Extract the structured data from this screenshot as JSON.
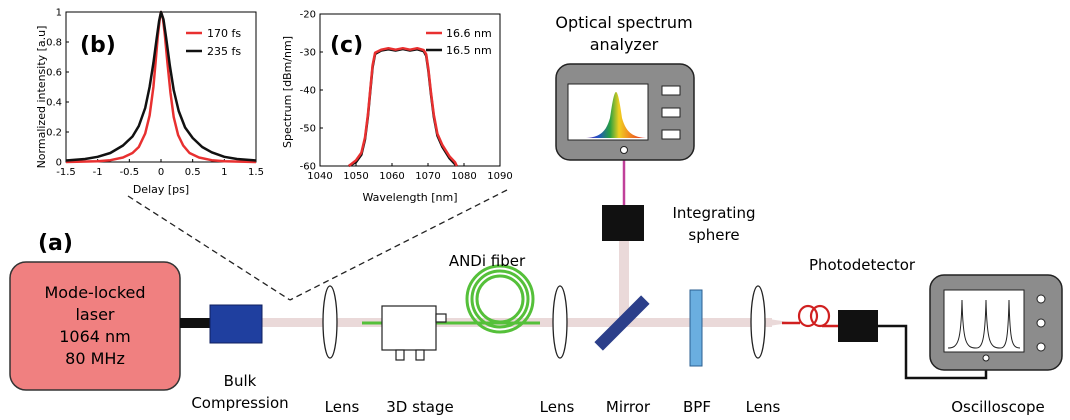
{
  "labels": {
    "panel_a": "(a)",
    "panel_b": "(b)",
    "panel_c": "(c)",
    "laser_line1": "Mode-locked",
    "laser_line2": "laser",
    "laser_line3": "1064 nm",
    "laser_line4": "80 MHz",
    "bulk_line1": "Bulk",
    "bulk_line2": "Compression",
    "lens1": "Lens",
    "stage3d": "3D stage",
    "andi_fiber": "ANDi fiber",
    "lens2": "Lens",
    "mirror": "Mirror",
    "bpf": "BPF",
    "lens3": "Lens",
    "osa_line1": "Optical spectrum",
    "osa_line2": "analyzer",
    "sphere_line1": "Integrating",
    "sphere_line2": "sphere",
    "photodetector": "Photodetector",
    "oscilloscope": "Oscilloscope"
  },
  "colors": {
    "laser_fill": "#f08080",
    "bulk_fill": "#1f3f9f",
    "fiber_green": "#55c03a",
    "beam": "#ead9d9",
    "bpf_fill": "#6aaee0",
    "mirror_fill": "#2c3f8a",
    "device_gray": "#8c8c8c",
    "trace_red": "#e83030",
    "trace_black": "#111111",
    "osa_link": "#c0409a"
  },
  "chart_data": [
    {
      "id": "b",
      "type": "line",
      "xlabel": "Delay [ps]",
      "ylabel": "Normalized intensity [a.u]",
      "xlim": [
        -1.5,
        1.5
      ],
      "ylim": [
        0,
        1
      ],
      "xticks": [
        "-1.5",
        "-1",
        "-0.5",
        "0",
        "0.5",
        "1",
        "1.5"
      ],
      "yticks": [
        "0",
        "0.2",
        "0.4",
        "0.6",
        "0.8",
        "1"
      ],
      "legend_position": "top-right",
      "series": [
        {
          "name": "170 fs",
          "color": "#e83030",
          "x": [
            -1.5,
            -1.0,
            -0.8,
            -0.6,
            -0.45,
            -0.35,
            -0.25,
            -0.18,
            -0.12,
            -0.08,
            -0.05,
            -0.02,
            0.0,
            0.03,
            0.06,
            0.1,
            0.15,
            0.2,
            0.27,
            0.35,
            0.45,
            0.6,
            0.8,
            1.0,
            1.5
          ],
          "y": [
            0,
            0.005,
            0.012,
            0.03,
            0.06,
            0.1,
            0.19,
            0.31,
            0.5,
            0.69,
            0.84,
            0.95,
            1.0,
            0.96,
            0.85,
            0.67,
            0.46,
            0.3,
            0.18,
            0.11,
            0.06,
            0.03,
            0.012,
            0.005,
            0
          ]
        },
        {
          "name": "235 fs",
          "color": "#111111",
          "x": [
            -1.5,
            -1.2,
            -1.0,
            -0.8,
            -0.6,
            -0.45,
            -0.35,
            -0.25,
            -0.18,
            -0.12,
            -0.07,
            -0.03,
            0.0,
            0.04,
            0.08,
            0.14,
            0.2,
            0.28,
            0.38,
            0.5,
            0.65,
            0.8,
            1.0,
            1.2,
            1.5
          ],
          "y": [
            0.01,
            0.02,
            0.035,
            0.06,
            0.11,
            0.17,
            0.24,
            0.36,
            0.5,
            0.66,
            0.82,
            0.94,
            1.0,
            0.95,
            0.83,
            0.64,
            0.48,
            0.34,
            0.23,
            0.16,
            0.1,
            0.065,
            0.035,
            0.02,
            0.01
          ]
        }
      ]
    },
    {
      "id": "c",
      "type": "line",
      "xlabel": "Wavelength [nm]",
      "ylabel": "Spectrum [dBm/nm]",
      "xlim": [
        1040,
        1090
      ],
      "ylim": [
        -60,
        -20
      ],
      "xticks": [
        "1040",
        "1050",
        "1060",
        "1070",
        "1080",
        "1090"
      ],
      "yticks": [
        "-60",
        "-50",
        "-40",
        "-30",
        "-20"
      ],
      "legend_position": "top-right",
      "series": [
        {
          "name": "16.5 nm",
          "color": "#111111",
          "x": [
            1048,
            1050,
            1051.5,
            1052.5,
            1053.3,
            1054,
            1054.6,
            1055.3,
            1057,
            1059,
            1061,
            1063,
            1065,
            1067,
            1068.8,
            1069.5,
            1070.1,
            1070.8,
            1071.6,
            1072.6,
            1074,
            1076,
            1077.5,
            1078
          ],
          "y": [
            -60,
            -59,
            -57,
            -53,
            -47,
            -40,
            -34,
            -30.5,
            -29.6,
            -29.3,
            -29.6,
            -29.2,
            -29.6,
            -29.3,
            -29.8,
            -31,
            -35,
            -41,
            -47,
            -52,
            -55,
            -58,
            -59.5,
            -60
          ]
        },
        {
          "name": "16.6 nm",
          "color": "#e83030",
          "x": [
            1048,
            1050,
            1051.5,
            1052.5,
            1053.3,
            1054,
            1054.6,
            1055.3,
            1057,
            1059,
            1061,
            1063,
            1065,
            1067,
            1068.8,
            1069.5,
            1070.1,
            1070.8,
            1071.6,
            1072.6,
            1074,
            1076,
            1077.5,
            1078
          ],
          "y": [
            -60,
            -58.5,
            -56.5,
            -52.5,
            -46.5,
            -39.5,
            -33.5,
            -30.2,
            -29.4,
            -29.0,
            -29.4,
            -29.0,
            -29.4,
            -29.0,
            -29.5,
            -30.6,
            -34.5,
            -40.5,
            -46.5,
            -51.5,
            -54.5,
            -57.5,
            -59,
            -60
          ]
        }
      ]
    }
  ]
}
